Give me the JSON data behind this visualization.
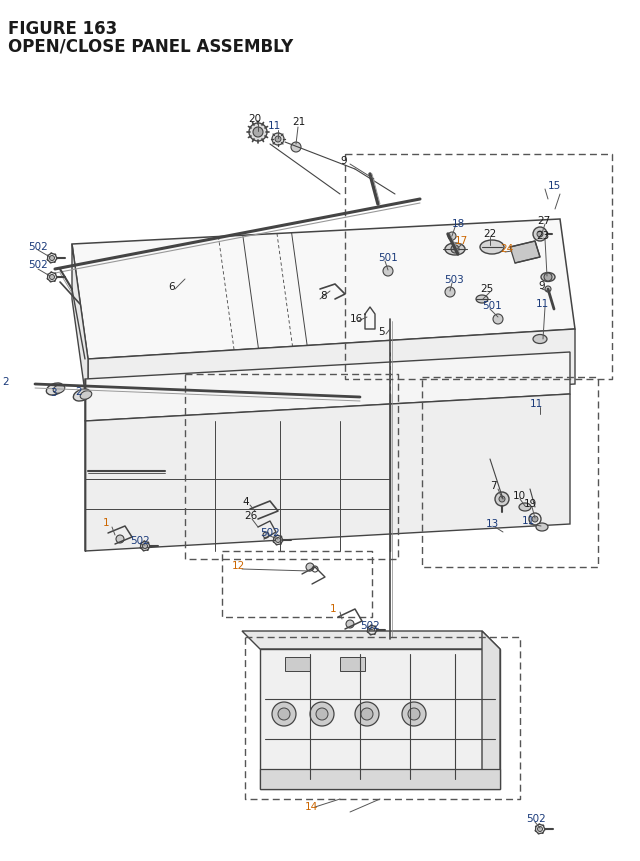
{
  "title_line1": "FIGURE 163",
  "title_line2": "OPEN/CLOSE PANEL ASSEMBLY",
  "title_color": "#1a1a2e",
  "title_fontsize": 11,
  "bg_color": "#ffffff",
  "line_color": "#444444",
  "label_color_black": "#1a1a1a",
  "label_color_blue": "#1a3a7a",
  "label_color_orange": "#cc6600",
  "label_fontsize": 7.5
}
